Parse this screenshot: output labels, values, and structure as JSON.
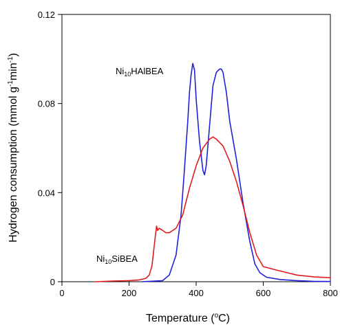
{
  "chart_data": {
    "type": "line",
    "xlabel_main": "Temperature (",
    "xlabel_sup": "o",
    "xlabel_end": "C)",
    "ylabel_main": "Hydrogen consumption (mmol g",
    "ylabel_sup1": "-1",
    "ylabel_mid": "min",
    "ylabel_sup2": "-1",
    "ylabel_end": ")",
    "xlim": [
      0,
      800
    ],
    "ylim": [
      0,
      0.12
    ],
    "x_ticks": [
      0,
      200,
      400,
      600,
      800
    ],
    "x_tick_labels": [
      "0",
      "200",
      "400",
      "600",
      "800"
    ],
    "y_ticks": [
      0,
      0.04,
      0.08,
      0.12
    ],
    "y_tick_labels": [
      "0",
      "0.04",
      "0.08",
      "0.12"
    ],
    "grid": false,
    "series": [
      {
        "label_main": "Ni",
        "label_sub": "10",
        "label_end": "HAlBEA",
        "color": "#1f1fdc",
        "x": [
          240,
          300,
          320,
          340,
          355,
          365,
          375,
          380,
          385,
          390,
          395,
          400,
          410,
          420,
          425,
          430,
          440,
          450,
          460,
          470,
          475,
          480,
          490,
          500,
          520,
          540,
          560,
          575,
          590,
          610,
          650,
          700,
          750,
          800
        ],
        "y": [
          0,
          0.0005,
          0.003,
          0.012,
          0.03,
          0.05,
          0.072,
          0.085,
          0.093,
          0.098,
          0.095,
          0.082,
          0.063,
          0.05,
          0.048,
          0.052,
          0.07,
          0.088,
          0.094,
          0.0955,
          0.0955,
          0.094,
          0.085,
          0.072,
          0.055,
          0.035,
          0.018,
          0.008,
          0.004,
          0.002,
          0.001,
          0.0005,
          0.0002,
          0.0001
        ]
      },
      {
        "label_main": "Ni",
        "label_sub": "10",
        "label_end": "SiBEA",
        "color": "#e31a1c",
        "x": [
          100,
          150,
          200,
          230,
          250,
          260,
          268,
          272,
          278,
          282,
          285,
          290,
          300,
          310,
          320,
          330,
          340,
          360,
          380,
          400,
          420,
          440,
          450,
          460,
          480,
          500,
          520,
          540,
          560,
          580,
          600,
          620,
          650,
          700,
          750,
          800
        ],
        "y": [
          0,
          0.0003,
          0.0005,
          0.0008,
          0.0015,
          0.003,
          0.007,
          0.012,
          0.02,
          0.025,
          0.023,
          0.024,
          0.023,
          0.022,
          0.022,
          0.023,
          0.024,
          0.03,
          0.042,
          0.052,
          0.06,
          0.064,
          0.065,
          0.064,
          0.061,
          0.054,
          0.045,
          0.034,
          0.022,
          0.012,
          0.0068,
          0.006,
          0.0048,
          0.003,
          0.0022,
          0.0018
        ]
      }
    ]
  }
}
